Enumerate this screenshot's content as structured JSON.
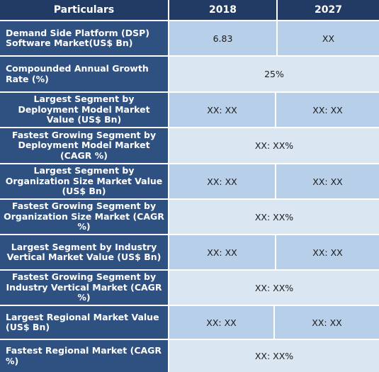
{
  "table": {
    "headers": [
      "Particulars",
      "2018",
      "2027"
    ],
    "rows": [
      {
        "label": "Demand Side Platform (DSP) Software Market(US$ Bn)",
        "v2018": "6.83",
        "v2027": "XX"
      },
      {
        "label": "Compounded Annual Growth Rate (%)",
        "value": "25%"
      },
      {
        "label": "Largest Segment by Deployment Model  Market Value (US$ Bn)",
        "v2018": "XX: XX",
        "v2027": "XX: XX"
      },
      {
        "label": "Fastest Growing Segment by Deployment Model Market (CAGR %)",
        "value": "XX: XX%"
      },
      {
        "label": "Largest Segment by Organization Size  Market Value (US$ Bn)",
        "v2018": "XX: XX",
        "v2027": "XX: XX"
      },
      {
        "label": "Fastest Growing Segment by Organization Size Market (CAGR %)",
        "value": "XX: XX%"
      },
      {
        "label": "Largest Segment by Industry Vertical Market Value (US$ Bn)",
        "v2018": "XX: XX",
        "v2027": "XX: XX"
      },
      {
        "label": "Fastest Growing Segment by Industry Vertical Market (CAGR %)",
        "value": "XX: XX%"
      },
      {
        "label": "Largest Regional Market Value (US$ Bn)",
        "v2018": "XX: XX",
        "v2027": "XX: XX"
      },
      {
        "label": "Fastest Regional Market (CAGR %)",
        "value": "XX: XX%"
      }
    ]
  },
  "colors": {
    "header_bg": "#213b64",
    "label_bg": "#2e5182",
    "value_bg_dark": "#b7cfe8",
    "value_bg_light": "#dbe6f3",
    "border": "#ffffff"
  }
}
